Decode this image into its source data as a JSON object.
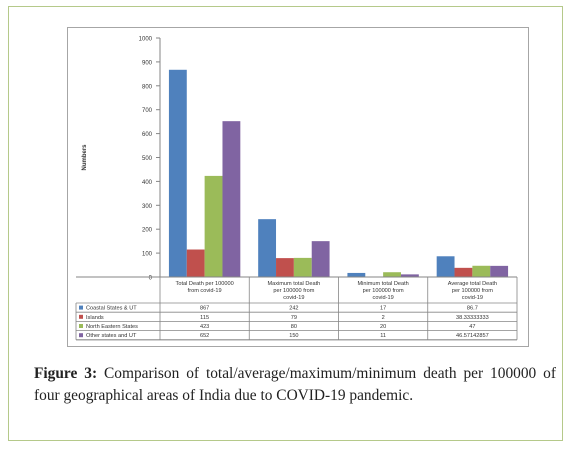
{
  "chart_data": {
    "type": "bar",
    "ylabel": "Numbers",
    "ylim": [
      0,
      1000
    ],
    "yticks": [
      0,
      100,
      200,
      300,
      400,
      500,
      600,
      700,
      800,
      900,
      1000
    ],
    "categories": [
      "Total Death per 100000 from covid-19",
      "Maximum total Death per 100000 from covid-19",
      "Minimum total Death per 100000 from covid-19",
      "Average total Death per 100000 from covid-19"
    ],
    "series": [
      {
        "name": "Coastal States & UT",
        "color": "#4f81bd",
        "values": [
          867,
          242,
          17,
          86.7
        ],
        "labels": [
          "867",
          "242",
          "17",
          "86.7"
        ]
      },
      {
        "name": "Islands",
        "color": "#c0504d",
        "values": [
          115,
          79,
          2,
          38.33333333
        ],
        "labels": [
          "115",
          "79",
          "2",
          "38.33333333"
        ]
      },
      {
        "name": "North Eastern States",
        "color": "#9bbb59",
        "values": [
          423,
          80,
          20,
          47
        ],
        "labels": [
          "423",
          "80",
          "20",
          "47"
        ]
      },
      {
        "name": "Other states and UT",
        "color": "#8064a2",
        "values": [
          652,
          150,
          11,
          46.57142857
        ],
        "labels": [
          "652",
          "150",
          "11",
          "46.57142857"
        ]
      }
    ],
    "grid": false,
    "legend": "data-table"
  },
  "caption": {
    "label": "Figure 3:",
    "text": " Comparison of total/average/maximum/minimum death per 100000 of four geographical areas of India due to COVID-19 pandemic."
  }
}
